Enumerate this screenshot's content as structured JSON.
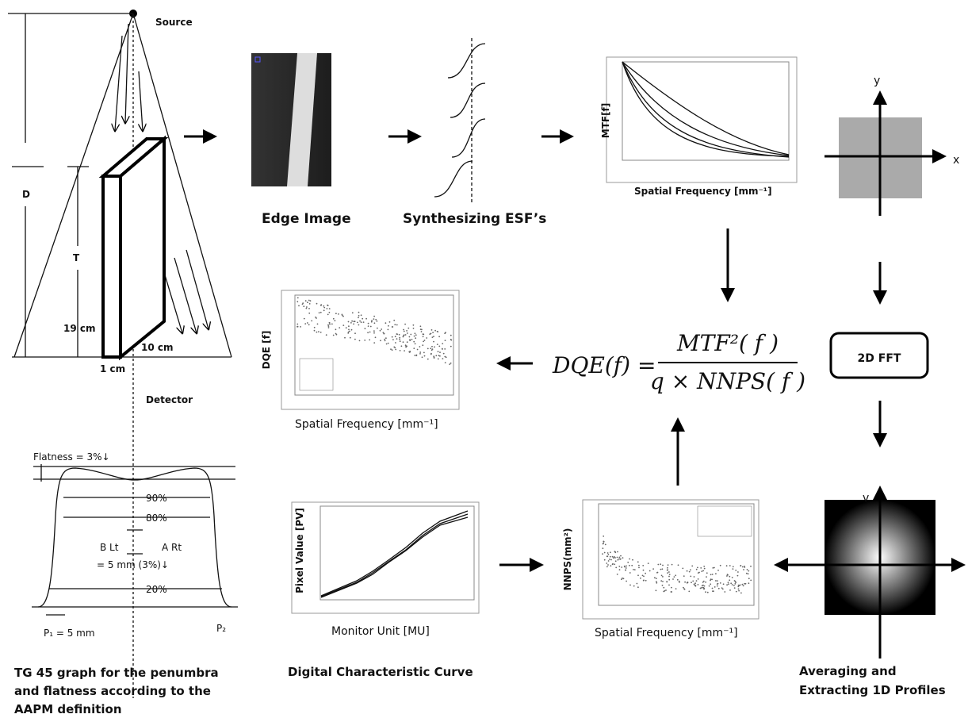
{
  "beam_setup": {
    "source": "Source",
    "d": "D",
    "t": "T",
    "dim_19": "19 cm",
    "dim_10": "10 cm",
    "dim_1": "1 cm",
    "detector": "Detector"
  },
  "penumbra_graph": {
    "flatness": "Flatness = 3%↓",
    "p90": "90%",
    "p80": "80%",
    "b_lt": "B Lt",
    "a_rt": "A Rt",
    "penumbra": "= 5 mm (3%)↓",
    "p20": "20%",
    "p1": "P₁ = 5 mm",
    "p2": "P₂",
    "caption": [
      "TG 45 graph for the penumbra",
      "and flatness according to the",
      "AAPM definition"
    ]
  },
  "edge_image": {
    "caption": "Edge Image"
  },
  "esf": {
    "caption": "Synthesizing ESF’s"
  },
  "mtf_plot": {
    "y_label": "MTF[f]",
    "x_label": "Spatial Frequency [mm⁻¹]"
  },
  "fft_axes": {
    "y": "y",
    "x": "x"
  },
  "fft_box": {
    "label": "2D FFT"
  },
  "profile": {
    "v": "v",
    "caption": [
      "Averaging and",
      "Extracting 1D Profiles"
    ]
  },
  "formula": {
    "lhs": "DQE(f) =",
    "numerator": "MTF²( f )",
    "denominator": "q × NNPS( f )"
  },
  "dqe_plot": {
    "y_label": "DQE [f]",
    "x_label": "Spatial Frequency [mm⁻¹]"
  },
  "pv_plot": {
    "y_label": "Pixel Value [PV]",
    "x_label": "Monitor Unit [MU]",
    "caption": "Digital Characteristic Curve"
  },
  "nnps_plot": {
    "y_label": "NNPS(mm²)",
    "x_label": "Spatial Frequency [mm⁻¹]"
  }
}
